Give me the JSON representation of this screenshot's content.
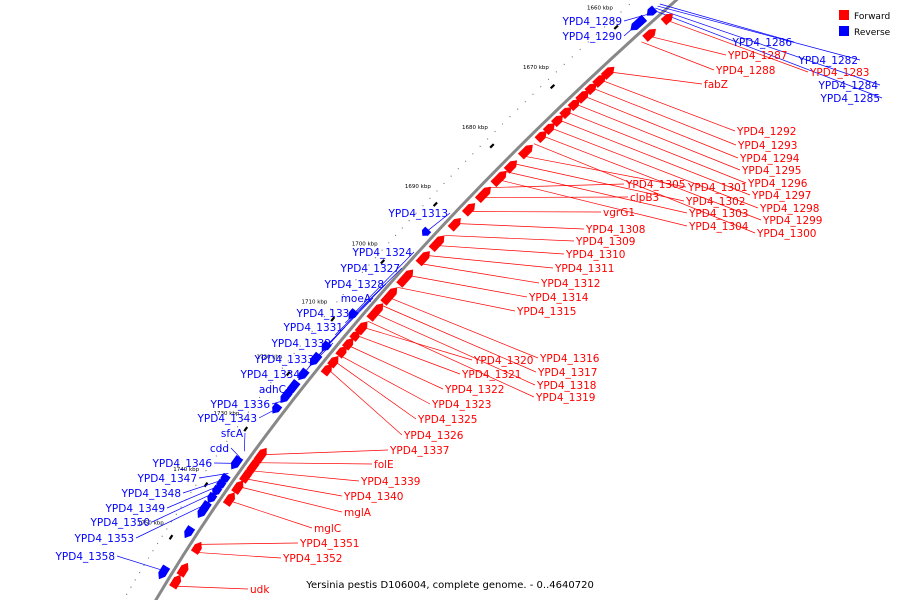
{
  "caption": "Yersinia pestis D106004, complete genome. - 0..4640720",
  "legend": [
    {
      "label": "Forward",
      "color": "#ff0000"
    },
    {
      "label": "Reverse",
      "color": "#0000ff"
    }
  ],
  "colors": {
    "forward": "#ff0000",
    "reverse": "#0000ff",
    "backbone": "#888888"
  },
  "kbp_ticks": [
    {
      "label": "1660 kbp",
      "kbp": 1660
    },
    {
      "label": "1670 kbp",
      "kbp": 1670
    },
    {
      "label": "1680 kbp",
      "kbp": 1680
    },
    {
      "label": "1690 kbp",
      "kbp": 1690
    },
    {
      "label": "1700 kbp",
      "kbp": 1700
    },
    {
      "label": "1710 kbp",
      "kbp": 1710
    },
    {
      "label": "1720 kbp",
      "kbp": 1720
    },
    {
      "label": "1730 kbp",
      "kbp": 1730
    },
    {
      "label": "1740 kbp",
      "kbp": 1740
    },
    {
      "label": "1750 kbp",
      "kbp": 1750
    }
  ],
  "reverse_labels": [
    "YPD4_1289",
    "YPD4_1290",
    "YPD4_1286",
    "YPD4_1282",
    "YPD4_1284",
    "YPD4_1285",
    "YPD4_1313",
    "YPD4_1324",
    "YPD4_1327",
    "YPD4_1328",
    "moeA",
    "YPD4_1330",
    "YPD4_1331",
    "YPD4_1332",
    "YPD4_1333",
    "YPD4_1334",
    "adhC",
    "YPD4_1336",
    "YPD4_1343",
    "sfcA",
    "cdd",
    "YPD4_1346",
    "YPD4_1347",
    "YPD4_1348",
    "YPD4_1349",
    "YPD4_1350",
    "YPD4_1353",
    "YPD4_1358"
  ],
  "forward_labels": [
    "YPD4_1287",
    "YPD4_1283",
    "YPD4_1288",
    "fabZ",
    "YPD4_1292",
    "YPD4_1293",
    "YPD4_1294",
    "YPD4_1295",
    "YPD4_1296",
    "YPD4_1297",
    "YPD4_1298",
    "YPD4_1299",
    "YPD4_1300",
    "YPD4_1301",
    "YPD4_1302",
    "YPD4_1303",
    "YPD4_1304",
    "YPD4_1305",
    "clpB3",
    "vgrG1",
    "YPD4_1308",
    "YPD4_1309",
    "YPD4_1310",
    "YPD4_1311",
    "YPD4_1312",
    "YPD4_1314",
    "YPD4_1315",
    "YPD4_1316",
    "YPD4_1317",
    "YPD4_1318",
    "YPD4_1319",
    "YPD4_1320",
    "YPD4_1321",
    "YPD4_1322",
    "YPD4_1323",
    "YPD4_1325",
    "YPD4_1326",
    "YPD4_1337",
    "folE",
    "YPD4_1339",
    "YPD4_1340",
    "mglA",
    "mglC",
    "YPD4_1351",
    "YPD4_1352",
    "udk"
  ]
}
